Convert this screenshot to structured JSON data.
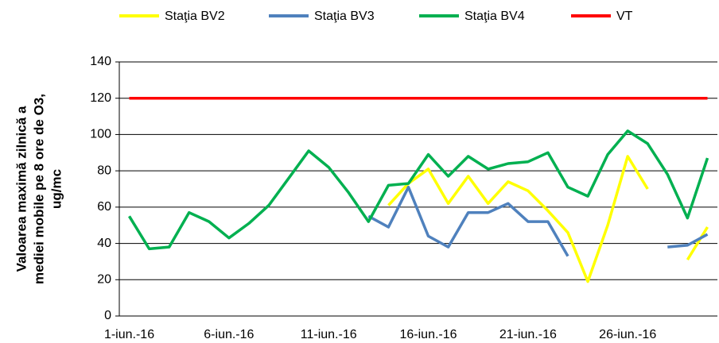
{
  "chart_data": {
    "type": "line",
    "y_label": [
      "Valoarea maximă zilnică a",
      "mediei mobile pe 8 ore de O3,",
      "ug/mc"
    ],
    "categories": [
      "1-iun.-16",
      null,
      null,
      null,
      null,
      "6-iun.-16",
      null,
      null,
      null,
      null,
      "11-iun.-16",
      null,
      null,
      null,
      null,
      "16-iun.-16",
      null,
      null,
      null,
      null,
      "21-iun.-16",
      null,
      null,
      null,
      null,
      "26-iun.-16",
      null,
      null,
      null,
      null
    ],
    "series": [
      {
        "name": "Staţia BV2",
        "color": "#ffff00",
        "values": [
          null,
          null,
          null,
          null,
          null,
          null,
          null,
          null,
          null,
          null,
          null,
          null,
          null,
          61,
          73,
          81,
          62,
          77,
          62,
          74,
          69,
          58,
          46,
          19,
          50,
          88,
          70,
          null,
          31,
          49
        ]
      },
      {
        "name": "Staţia BV3",
        "color": "#4f81bd",
        "values": [
          null,
          null,
          null,
          null,
          null,
          null,
          null,
          null,
          null,
          null,
          null,
          null,
          55,
          49,
          71,
          44,
          38,
          57,
          57,
          62,
          52,
          52,
          33,
          null,
          null,
          null,
          null,
          38,
          39,
          45
        ]
      },
      {
        "name": "Staţia BV4",
        "color": "#00b050",
        "values": [
          55,
          37,
          38,
          57,
          52,
          43,
          51,
          61,
          76,
          91,
          82,
          68,
          52,
          72,
          73,
          89,
          77,
          88,
          81,
          84,
          85,
          90,
          71,
          66,
          89,
          102,
          95,
          78,
          54,
          87
        ]
      },
      {
        "name": "VT",
        "color": "#ff0000",
        "values": [
          120,
          120,
          120,
          120,
          120,
          120,
          120,
          120,
          120,
          120,
          120,
          120,
          120,
          120,
          120,
          120,
          120,
          120,
          120,
          120,
          120,
          120,
          120,
          120,
          120,
          120,
          120,
          120,
          120,
          120
        ]
      }
    ],
    "ylim": [
      0,
      140
    ],
    "yticks": [
      0,
      20,
      40,
      60,
      80,
      100,
      120,
      140
    ],
    "grid": true
  }
}
